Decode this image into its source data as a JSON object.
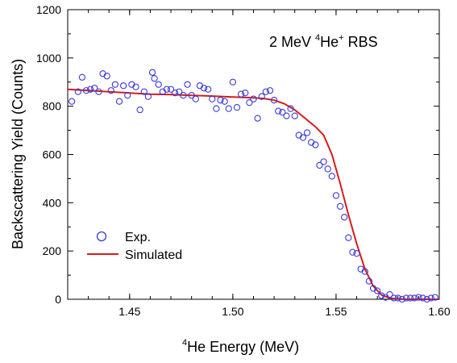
{
  "chart_data": {
    "type": "scatter",
    "annotation": {
      "prefix": "2 MeV ",
      "sup1": "4",
      "middle": "He",
      "sup2": "+",
      "suffix": " RBS"
    },
    "xlabel": {
      "sup": "4",
      "text": "He Energy (MeV)"
    },
    "ylabel": "Backscattering Yield (Counts)",
    "xlim": [
      1.42,
      1.6
    ],
    "ylim": [
      0,
      1200
    ],
    "xticks": [
      1.45,
      1.5,
      1.55,
      1.6
    ],
    "xtick_labels": [
      "1.45",
      "1.50",
      "1.55",
      "1.60"
    ],
    "yticks": [
      0,
      200,
      400,
      600,
      800,
      1000,
      1200
    ],
    "ytick_labels": [
      "0",
      "200",
      "400",
      "600",
      "800",
      "1000",
      "1200"
    ],
    "grid": false,
    "legend": {
      "position": "bottom-left",
      "entries": [
        "Exp.",
        "Simulated"
      ]
    },
    "colors": {
      "exp": "#3a3ad6",
      "simulated": "#d81b1b",
      "axis": "#000000"
    },
    "series": [
      {
        "name": "Exp.",
        "marker": "open-circle",
        "x": [
          1.422,
          1.425,
          1.427,
          1.429,
          1.431,
          1.433,
          1.435,
          1.437,
          1.439,
          1.441,
          1.443,
          1.445,
          1.447,
          1.449,
          1.451,
          1.453,
          1.455,
          1.457,
          1.459,
          1.461,
          1.462,
          1.464,
          1.466,
          1.468,
          1.47,
          1.472,
          1.474,
          1.476,
          1.478,
          1.48,
          1.482,
          1.484,
          1.486,
          1.488,
          1.49,
          1.492,
          1.494,
          1.496,
          1.498,
          1.5,
          1.502,
          1.504,
          1.506,
          1.508,
          1.51,
          1.512,
          1.514,
          1.516,
          1.518,
          1.52,
          1.522,
          1.524,
          1.526,
          1.528,
          1.53,
          1.532,
          1.534,
          1.536,
          1.538,
          1.54,
          1.542,
          1.544,
          1.546,
          1.548,
          1.55,
          1.552,
          1.554,
          1.556,
          1.558,
          1.56,
          1.562,
          1.564,
          1.566,
          1.568,
          1.57,
          1.572,
          1.574,
          1.576,
          1.578,
          1.58,
          1.582,
          1.584,
          1.586,
          1.588,
          1.59,
          1.592,
          1.594,
          1.596,
          1.598
        ],
        "y": [
          820,
          860,
          920,
          865,
          870,
          875,
          860,
          935,
          925,
          865,
          890,
          820,
          885,
          845,
          890,
          880,
          785,
          860,
          840,
          940,
          915,
          890,
          860,
          870,
          870,
          855,
          860,
          845,
          890,
          845,
          830,
          885,
          875,
          870,
          830,
          790,
          825,
          820,
          790,
          900,
          795,
          850,
          855,
          815,
          830,
          750,
          840,
          860,
          865,
          825,
          780,
          775,
          760,
          790,
          760,
          680,
          670,
          690,
          650,
          640,
          555,
          570,
          540,
          510,
          430,
          385,
          340,
          255,
          195,
          190,
          125,
          115,
          75,
          45,
          35,
          15,
          8,
          20,
          5,
          5,
          0,
          5,
          5,
          5,
          8,
          5,
          0,
          5,
          8
        ]
      },
      {
        "name": "Simulated",
        "marker": "line",
        "x": [
          1.42,
          1.43,
          1.44,
          1.45,
          1.46,
          1.47,
          1.48,
          1.49,
          1.5,
          1.51,
          1.515,
          1.52,
          1.525,
          1.53,
          1.535,
          1.54,
          1.544,
          1.548,
          1.552,
          1.556,
          1.56,
          1.564,
          1.568,
          1.572,
          1.576,
          1.58,
          1.585,
          1.59,
          1.6
        ],
        "y": [
          870,
          865,
          860,
          855,
          850,
          848,
          845,
          842,
          838,
          835,
          832,
          825,
          810,
          785,
          750,
          715,
          680,
          600,
          480,
          350,
          230,
          125,
          55,
          18,
          5,
          1,
          0,
          0,
          0
        ]
      }
    ]
  }
}
